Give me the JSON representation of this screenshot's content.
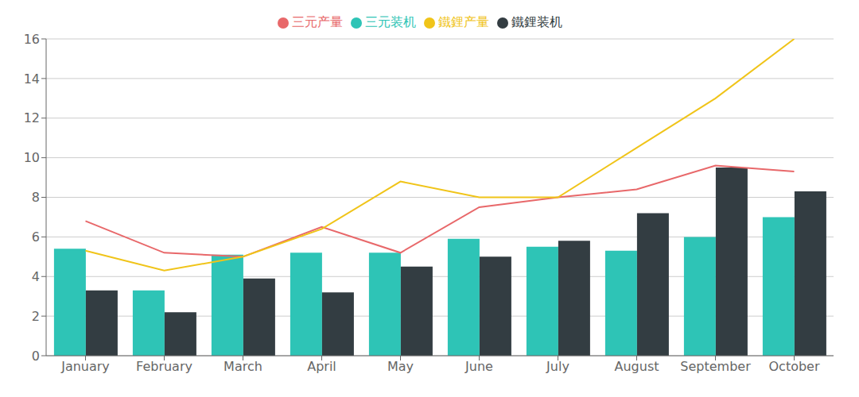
{
  "chart_data": {
    "type": "bar",
    "categories": [
      "January",
      "February",
      "March",
      "April",
      "May",
      "June",
      "July",
      "August",
      "September",
      "October"
    ],
    "series": [
      {
        "name": "三元装机",
        "type": "bar",
        "color": "#2ec4b6",
        "values": [
          5.4,
          3.3,
          5.1,
          5.2,
          5.2,
          5.9,
          5.5,
          5.3,
          6.0,
          7.0
        ]
      },
      {
        "name": "鐵鋰装机",
        "type": "bar",
        "color": "#333d42",
        "values": [
          3.3,
          2.2,
          3.9,
          3.2,
          4.5,
          5.0,
          5.8,
          7.2,
          9.5,
          8.3
        ]
      },
      {
        "name": "三元产量",
        "type": "line",
        "color": "#e8686a",
        "marker": "none",
        "values": [
          6.8,
          5.2,
          5.0,
          6.5,
          5.2,
          7.5,
          8.0,
          8.4,
          9.6,
          9.3
        ]
      },
      {
        "name": "鐵鋰产量",
        "type": "line",
        "color": "#f0c419",
        "marker": "none",
        "values": [
          5.3,
          4.3,
          5.0,
          6.4,
          8.8,
          8.0,
          8.0,
          10.5,
          13.0,
          16.0
        ]
      }
    ],
    "ylim": [
      0,
      16
    ],
    "yticks": [
      0,
      2,
      4,
      6,
      8,
      10,
      12,
      14,
      16
    ],
    "grid": true,
    "legend": "top"
  }
}
